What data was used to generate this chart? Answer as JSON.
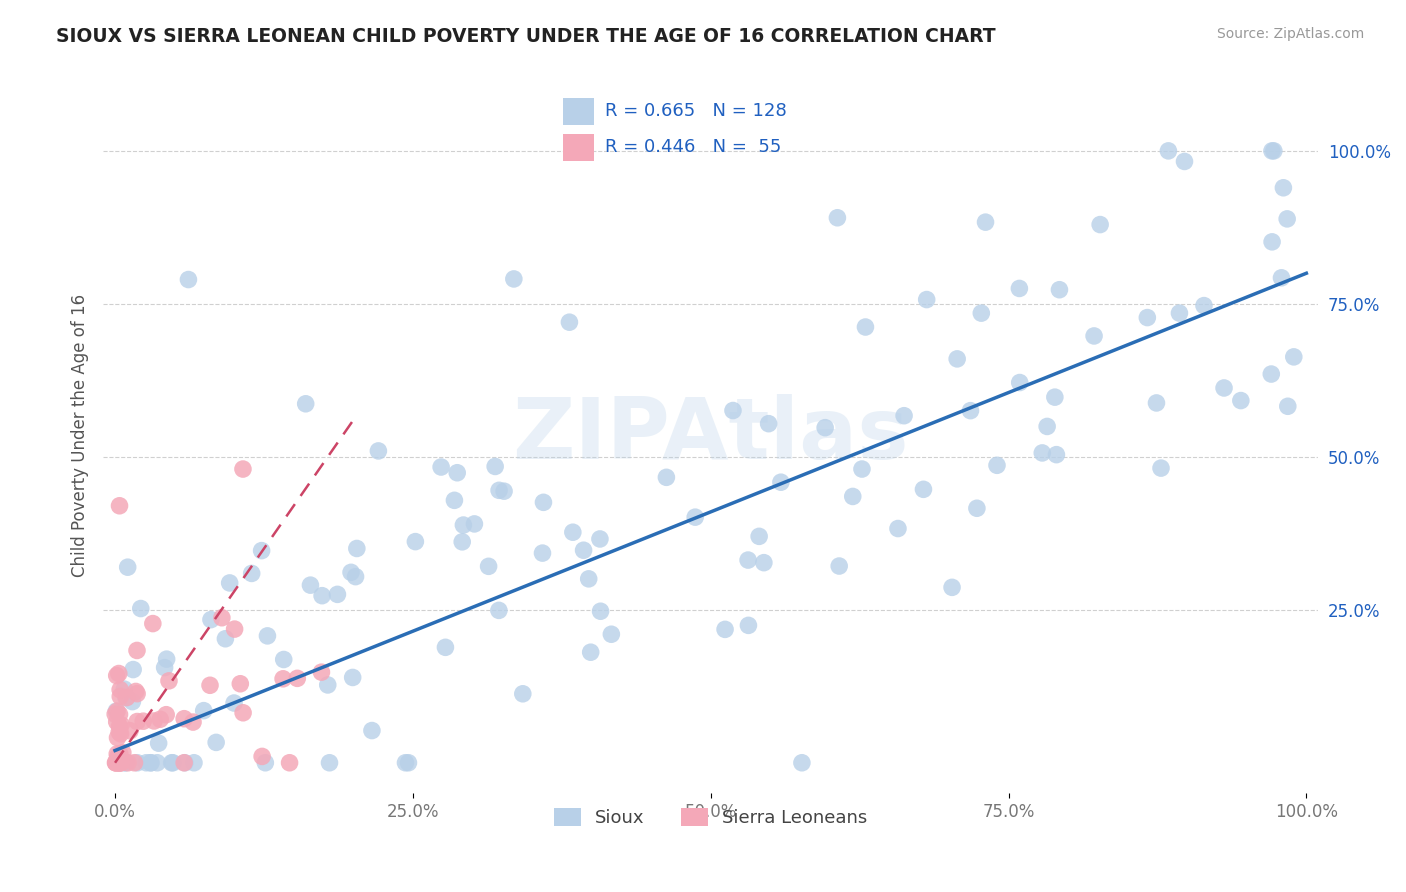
{
  "title": "SIOUX VS SIERRA LEONEAN CHILD POVERTY UNDER THE AGE OF 16 CORRELATION CHART",
  "source": "Source: ZipAtlas.com",
  "ylabel": "Child Poverty Under the Age of 16",
  "sioux_R": 0.665,
  "sioux_N": 128,
  "sierra_R": 0.446,
  "sierra_N": 55,
  "sioux_color": "#b8d0e8",
  "sierra_color": "#f4a8b8",
  "sioux_line_color": "#2a6db5",
  "sierra_line_color": "#cc4466",
  "legend_text_color": "#2060c0",
  "background_color": "#ffffff",
  "grid_color": "#d0d0d0",
  "title_color": "#222222",
  "watermark_color": "#b8d0e8",
  "ytick_color": "#2060c0",
  "xtick_color": "#777777",
  "ylabel_color": "#555555"
}
